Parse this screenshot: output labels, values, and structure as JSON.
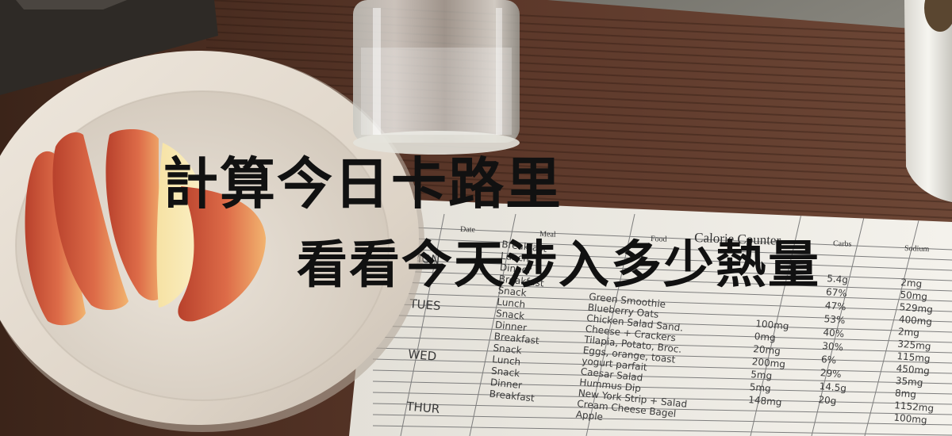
{
  "headline": {
    "line1": "計算今日卡路里",
    "line2": "看看今天涉入多少熱量"
  },
  "sheet": {
    "title": "Calorie Counter",
    "columns": [
      "Date",
      "Meal",
      "Food",
      "Carbs",
      "Sodium"
    ],
    "days": [
      "MON",
      "TUES",
      "WED",
      "THUR"
    ],
    "meals": [
      "Breakfast",
      "Lunch",
      "Dinner",
      "Breakfast",
      "Snack",
      "Lunch",
      "Snack",
      "Dinner",
      "Breakfast",
      "Snack",
      "Lunch",
      "Snack",
      "Dinner",
      "Breakfast"
    ],
    "foods": [
      "Green Smoothie",
      "Blueberry Oats",
      "Chicken Salad Sand.",
      "Cheese + Crackers",
      "Tilapia, Potato, Broc.",
      "Eggs, orange, toast",
      "yogurt parfait",
      "Caesar Salad",
      "Hummus Dip",
      "New York Strip + Salad",
      "Cream Cheese Bagel",
      "Apple"
    ],
    "mid_values": [
      "100mg",
      "0mg",
      "20mg",
      "200mg",
      "5mg",
      "5mg",
      "148mg"
    ],
    "carbs_values": [
      "5.4g",
      "67%",
      "47%",
      "53%",
      "40%",
      "30%",
      "6%",
      "29%",
      "14.5g",
      "20g"
    ],
    "sodium_values": [
      "2mg",
      "50mg",
      "529mg",
      "400mg",
      "2mg",
      "325mg",
      "115mg",
      "450mg",
      "35mg",
      "8mg",
      "1152mg",
      "100mg"
    ]
  }
}
